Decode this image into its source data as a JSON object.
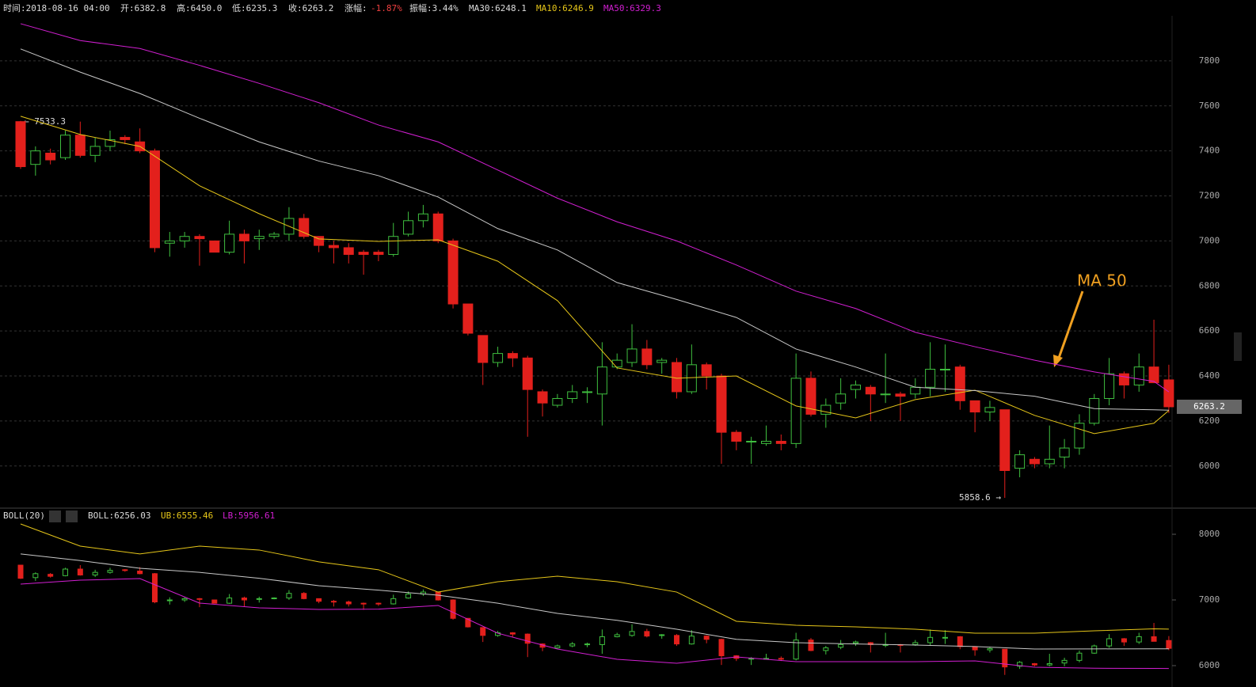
{
  "header": {
    "time": "时间:2018-08-16 04:00",
    "open": "开:6382.8",
    "high": "高:6450.0",
    "low": "低:6235.3",
    "close": "收:6263.2",
    "change_label": "涨幅:",
    "change": "-1.87%",
    "amplitude": "振幅:3.44%",
    "ma30": "MA30:6248.1",
    "ma10": "MA10:6246.9",
    "ma50": "MA50:6329.3"
  },
  "boll_header": {
    "title": "BOLL(20)",
    "boll": "BOLL:6256.03",
    "ub": "UB:6555.46",
    "lb": "LB:5956.61"
  },
  "chart_data": [
    {
      "type": "candlestick",
      "ylim": [
        5820,
        8000
      ],
      "yticks": [
        6000,
        6200,
        6400,
        6600,
        6800,
        7000,
        7200,
        7400,
        7600,
        7800
      ],
      "grid": true,
      "up_color": "#3fbf3f",
      "down_color": "#e3201c",
      "open": [
        7530,
        7340,
        7390,
        7370,
        7470,
        7380,
        7420,
        7460,
        7440,
        7400,
        6990,
        7000,
        7020,
        7000,
        6950,
        7030,
        7010,
        7020,
        7030,
        7100,
        7020,
        6980,
        6970,
        6950,
        6950,
        6940,
        7030,
        7090,
        7120,
        7000,
        6720,
        6580,
        6460,
        6500,
        6480,
        6330,
        6270,
        6300,
        6330,
        6320,
        6440,
        6460,
        6520,
        6460,
        6460,
        6330,
        6450,
        6400,
        6150,
        6110,
        6100,
        6110,
        6100,
        6390,
        6230,
        6280,
        6340,
        6350,
        6320,
        6320,
        6320,
        6350,
        6430,
        6440,
        6290,
        6240,
        6250,
        5990,
        6030,
        6010,
        6040,
        6080,
        6190,
        6300,
        6410,
        6360,
        6440,
        6382.8
      ],
      "high": [
        7533.3,
        7420,
        7410,
        7490,
        7530,
        7460,
        7490,
        7470,
        7500,
        7410,
        7040,
        7040,
        7030,
        7000,
        7090,
        7050,
        7050,
        7040,
        7150,
        7120,
        7020,
        7000,
        6990,
        6960,
        6960,
        7080,
        7130,
        7160,
        7130,
        7010,
        6720,
        6580,
        6530,
        6510,
        6490,
        6340,
        6320,
        6360,
        6350,
        6550,
        6500,
        6630,
        6560,
        6480,
        6480,
        6540,
        6460,
        6410,
        6160,
        6130,
        6180,
        6140,
        6500,
        6420,
        6300,
        6390,
        6380,
        6360,
        6500,
        6330,
        6390,
        6550,
        6540,
        6450,
        6290,
        6290,
        6250,
        6070,
        6040,
        6180,
        6120,
        6230,
        6320,
        6480,
        6420,
        6500,
        6650,
        6450
      ],
      "low": [
        7320,
        7290,
        7340,
        7360,
        7370,
        7350,
        7400,
        7430,
        7390,
        6950,
        6930,
        6970,
        6890,
        6950,
        6940,
        6900,
        6960,
        7010,
        7000,
        7010,
        6950,
        6900,
        6900,
        6850,
        6910,
        6930,
        7020,
        7060,
        6990,
        6700,
        6580,
        6360,
        6440,
        6440,
        6130,
        6220,
        6260,
        6280,
        6280,
        6180,
        6430,
        6440,
        6430,
        6410,
        6300,
        6320,
        6340,
        6010,
        6070,
        6010,
        6090,
        6070,
        6080,
        6220,
        6170,
        6250,
        6300,
        6200,
        6280,
        6200,
        6300,
        6310,
        6330,
        6250,
        6150,
        6200,
        5858.6,
        5950,
        5990,
        5990,
        5990,
        6050,
        6180,
        6270,
        6300,
        6330,
        6370,
        6235.3
      ],
      "close": [
        7330,
        7400,
        7360,
        7470,
        7380,
        7420,
        7450,
        7450,
        7400,
        6970,
        7000,
        7020,
        7010,
        6950,
        7030,
        7000,
        7020,
        7030,
        7100,
        7020,
        6980,
        6970,
        6940,
        6940,
        6940,
        7020,
        7090,
        7120,
        7000,
        6720,
        6590,
        6460,
        6500,
        6480,
        6340,
        6280,
        6300,
        6330,
        6330,
        6440,
        6470,
        6520,
        6450,
        6470,
        6330,
        6450,
        6400,
        6150,
        6110,
        6110,
        6110,
        6100,
        6390,
        6230,
        6270,
        6320,
        6360,
        6320,
        6320,
        6310,
        6350,
        6430,
        6430,
        6290,
        6240,
        6260,
        5980,
        6050,
        6010,
        6030,
        6080,
        6190,
        6300,
        6410,
        6360,
        6440,
        6370,
        6263.2
      ],
      "series": [
        {
          "name": "MA10",
          "color": "#e6c619",
          "x": [
            0,
            4,
            8,
            12,
            16,
            20,
            24,
            28,
            32,
            36,
            40,
            44,
            48,
            52,
            56,
            60,
            64,
            68,
            72,
            76,
            77
          ],
          "values": [
            7554,
            7473,
            7420,
            7245,
            7121,
            7009,
            6998,
            7005,
            6910,
            6735,
            6436,
            6390,
            6400,
            6267,
            6214,
            6295,
            6337,
            6225,
            6144,
            6190,
            6246.9
          ]
        },
        {
          "name": "MA30",
          "color": "#c8c8c8",
          "x": [
            0,
            4,
            8,
            12,
            16,
            20,
            24,
            28,
            32,
            36,
            40,
            44,
            48,
            52,
            56,
            60,
            64,
            68,
            72,
            76,
            77
          ],
          "values": [
            7853,
            7750,
            7655,
            7545,
            7440,
            7355,
            7290,
            7195,
            7055,
            6960,
            6815,
            6740,
            6660,
            6520,
            6440,
            6350,
            6335,
            6310,
            6255,
            6250,
            6248.1
          ]
        },
        {
          "name": "MA50",
          "color": "#d21fd2",
          "x": [
            0,
            4,
            8,
            12,
            16,
            20,
            24,
            28,
            32,
            36,
            40,
            44,
            48,
            52,
            56,
            60,
            64,
            68,
            72,
            76,
            77
          ],
          "values": [
            7965,
            7890,
            7855,
            7780,
            7700,
            7614,
            7515,
            7440,
            7315,
            7190,
            7085,
            7000,
            6893,
            6777,
            6700,
            6594,
            6530,
            6470,
            6418,
            6376,
            6329.3
          ]
        }
      ],
      "annotations": [
        "← 7533.3",
        "5858.6 →",
        "MA 50"
      ],
      "last_price_label": "6263.2"
    },
    {
      "type": "line",
      "ylim": [
        5795,
        8145
      ],
      "yticks": [
        6000,
        7000,
        8000
      ],
      "grid": false,
      "series": [
        {
          "name": "UB",
          "color": "#e6c619",
          "x": [
            0,
            4,
            8,
            12,
            16,
            20,
            24,
            28,
            32,
            36,
            40,
            44,
            48,
            52,
            56,
            60,
            64,
            68,
            72,
            76,
            77
          ],
          "values": [
            8157,
            7820,
            7700,
            7820,
            7760,
            7580,
            7460,
            7120,
            7277,
            7361,
            7277,
            7120,
            6675,
            6614,
            6590,
            6554,
            6494,
            6494,
            6530,
            6560,
            6555.46
          ]
        },
        {
          "name": "BOLL",
          "color": "#c8c8c8",
          "x": [
            0,
            4,
            8,
            12,
            16,
            20,
            24,
            28,
            32,
            36,
            40,
            44,
            48,
            52,
            56,
            60,
            64,
            68,
            72,
            76,
            77
          ],
          "values": [
            7700,
            7600,
            7482,
            7420,
            7330,
            7217,
            7150,
            7072,
            6950,
            6795,
            6690,
            6554,
            6400,
            6349,
            6330,
            6313,
            6290,
            6253,
            6255,
            6256,
            6256.03
          ]
        },
        {
          "name": "LB",
          "color": "#d21fd2",
          "x": [
            0,
            4,
            8,
            12,
            16,
            20,
            24,
            28,
            32,
            36,
            40,
            44,
            48,
            52,
            56,
            60,
            64,
            68,
            72,
            76,
            77
          ],
          "values": [
            7241,
            7301,
            7325,
            6952,
            6880,
            6856,
            6860,
            6916,
            6494,
            6253,
            6096,
            6036,
            6132,
            6060,
            6060,
            6060,
            6072,
            5976,
            5960,
            5957,
            5956.61
          ]
        }
      ]
    }
  ]
}
